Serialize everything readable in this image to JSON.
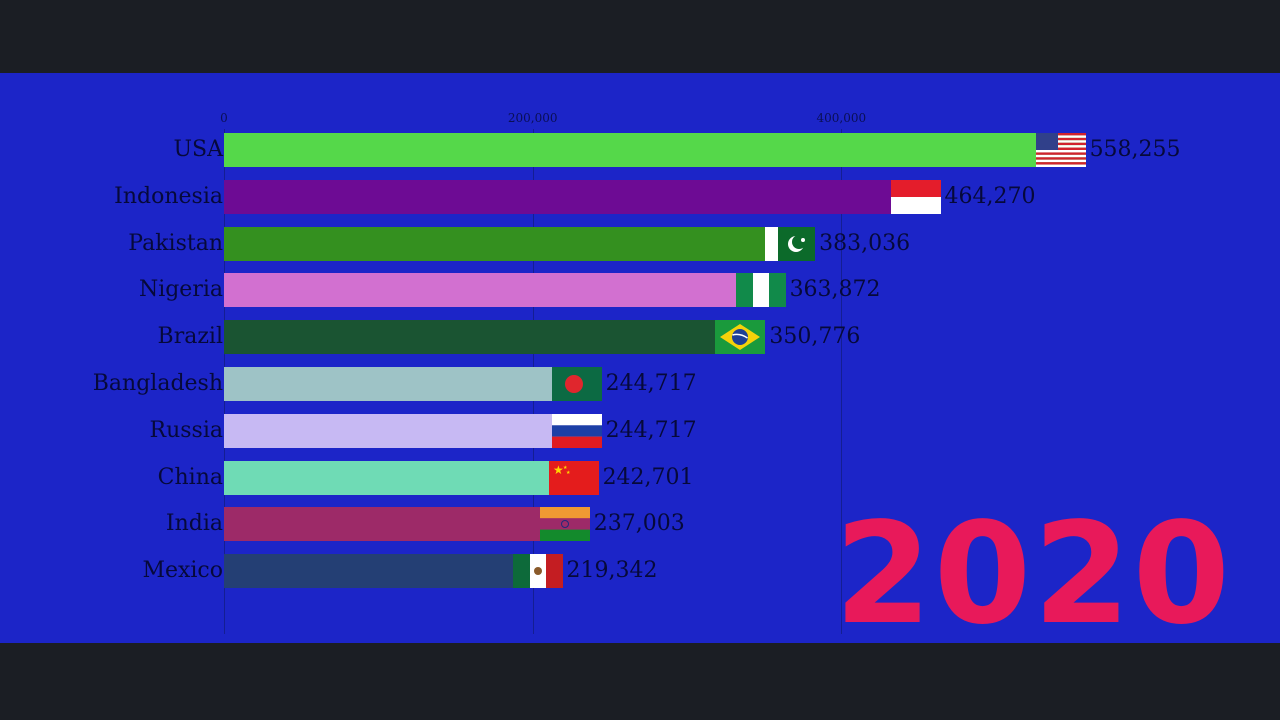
{
  "chart_data": {
    "type": "bar",
    "orientation": "horizontal",
    "title": "",
    "year_label": "2020",
    "categories": [
      "USA",
      "Indonesia",
      "Pakistan",
      "Nigeria",
      "Brazil",
      "Bangladesh",
      "Russia",
      "China",
      "India",
      "Mexico"
    ],
    "values": [
      558255,
      464270,
      383036,
      363872,
      350776,
      244717,
      244717,
      242701,
      237003,
      219342
    ],
    "value_labels": [
      "558,255",
      "464,270",
      "383,036",
      "363,872",
      "350,776",
      "244,717",
      "244,717",
      "242,701",
      "237,003",
      "219,342"
    ],
    "bar_colors": [
      "#55d84a",
      "#6d0b94",
      "#34901f",
      "#d270d0",
      "#1a5432",
      "#9ec3c6",
      "#c7b9f3",
      "#6fdbb5",
      "#9d2a68",
      "#243f74"
    ],
    "flags": [
      "usa",
      "indonesia",
      "pakistan",
      "nigeria",
      "brazil",
      "bangladesh",
      "russia",
      "china",
      "india",
      "mexico"
    ],
    "xlim": [
      0,
      600000
    ],
    "x_ticks": [
      0,
      200000,
      400000
    ],
    "x_tick_labels": [
      "0",
      "200,000",
      "400,000"
    ],
    "background_color": "#1c25c8",
    "year_color": "#e8195a",
    "grid": true
  }
}
